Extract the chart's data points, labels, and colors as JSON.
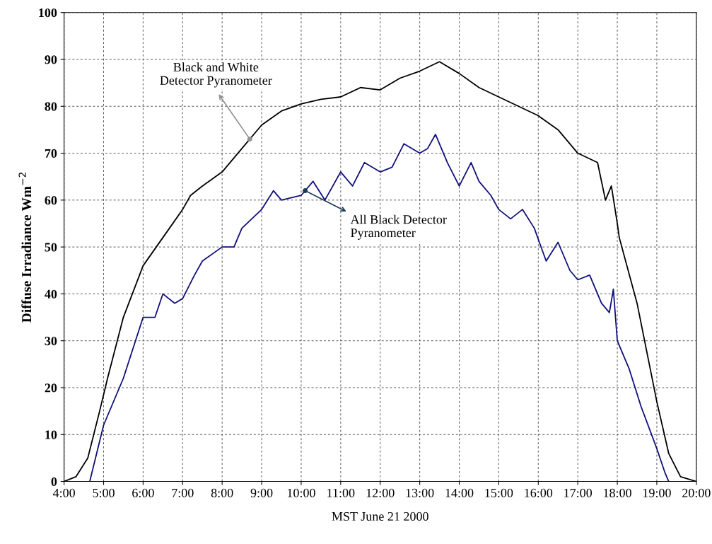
{
  "chart_data": {
    "type": "line",
    "xlabel": "MST June 21 2000",
    "ylabel": "Diffuse Irradiance Wm$^{−2}$",
    "xlim": [
      4,
      20
    ],
    "ylim": [
      0,
      100
    ],
    "xticks": [
      {
        "value": 4,
        "label": "4:00"
      },
      {
        "value": 5,
        "label": "5:00"
      },
      {
        "value": 6,
        "label": "6:00"
      },
      {
        "value": 7,
        "label": "7:00"
      },
      {
        "value": 8,
        "label": "8:00"
      },
      {
        "value": 9,
        "label": "9:00"
      },
      {
        "value": 10,
        "label": "10:00"
      },
      {
        "value": 11,
        "label": "11:00"
      },
      {
        "value": 12,
        "label": "12:00"
      },
      {
        "value": 13,
        "label": "13:00"
      },
      {
        "value": 14,
        "label": "14:00"
      },
      {
        "value": 15,
        "label": "15:00"
      },
      {
        "value": 16,
        "label": "16:00"
      },
      {
        "value": 17,
        "label": "17:00"
      },
      {
        "value": 18,
        "label": "18:00"
      },
      {
        "value": 19,
        "label": "19:00"
      },
      {
        "value": 20,
        "label": "20:00"
      }
    ],
    "yticks": [
      0,
      10,
      20,
      30,
      40,
      50,
      60,
      70,
      80,
      90,
      100
    ],
    "grid": true,
    "marker": "none",
    "line_style": "solid",
    "series": [
      {
        "color": "#000000",
        "x": [
          4.0,
          4.3,
          4.6,
          4.9,
          5.1,
          5.5,
          6.0,
          6.5,
          7.0,
          7.2,
          7.5,
          8.0,
          8.5,
          9.0,
          9.5,
          10.0,
          10.5,
          11.0,
          11.5,
          12.0,
          12.5,
          13.0,
          13.5,
          14.0,
          14.5,
          15.0,
          15.5,
          16.0,
          16.5,
          17.0,
          17.5,
          17.7,
          17.85,
          18.0,
          18.05,
          18.5,
          19.0,
          19.3,
          19.6,
          20.0
        ],
        "values": [
          0,
          1,
          5,
          15,
          22,
          35,
          46,
          52,
          58,
          61,
          63,
          66,
          71,
          76,
          79,
          80.5,
          81.5,
          82,
          84,
          83.5,
          86,
          87.5,
          89.5,
          87,
          84,
          82,
          80,
          78,
          75,
          70,
          68,
          60,
          63,
          55,
          52,
          38,
          17,
          6,
          1,
          0
        ]
      },
      {
        "color": "#10107a",
        "x": [
          4.65,
          5.0,
          5.5,
          6.0,
          6.3,
          6.5,
          6.8,
          7.0,
          7.3,
          7.5,
          8.0,
          8.3,
          8.5,
          9.0,
          9.3,
          9.5,
          10.0,
          10.3,
          10.6,
          11.0,
          11.3,
          11.6,
          12.0,
          12.3,
          12.6,
          13.0,
          13.2,
          13.4,
          13.7,
          14.0,
          14.3,
          14.5,
          14.8,
          15.0,
          15.3,
          15.6,
          15.9,
          16.2,
          16.5,
          16.8,
          17.0,
          17.3,
          17.6,
          17.8,
          17.9,
          18.0,
          18.3,
          18.6,
          19.0,
          19.2,
          19.3
        ],
        "values": [
          0,
          12,
          22,
          35,
          35,
          40,
          38,
          39,
          44,
          47,
          50,
          50,
          54,
          58,
          62,
          60,
          61,
          64,
          60,
          66,
          63,
          68,
          66,
          67,
          72,
          70,
          71,
          74,
          68,
          63,
          68,
          64,
          61,
          58,
          56,
          58,
          54,
          47,
          51,
          45,
          43,
          44,
          38,
          36,
          41,
          30,
          24,
          16,
          7,
          2,
          0
        ]
      }
    ],
    "annotations": [
      {
        "text": "Black and White\nDetector Pyranometer",
        "x": 8.7,
        "y": 73
      },
      {
        "text": "All Black Detector\nPyranometer",
        "x": 10.1,
        "y": 62
      }
    ]
  }
}
